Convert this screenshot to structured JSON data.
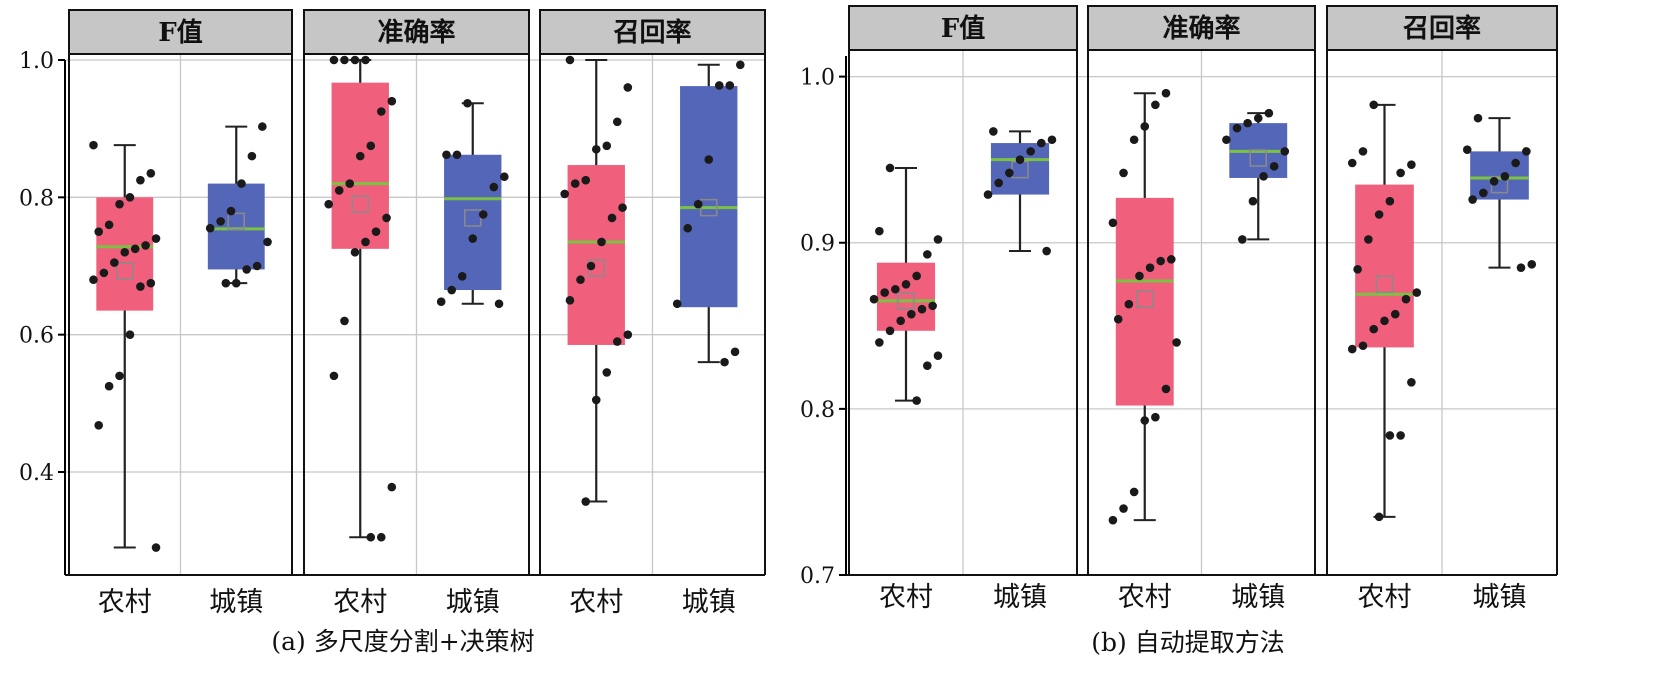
{
  "colors": {
    "rural_box": "#f0607d",
    "urban_box": "#5466b8",
    "median": "#7cc242",
    "strip_bg": "#c6c6c6",
    "grid": "#c8c8c8",
    "point": "#1a1a1a"
  },
  "chart_data": [
    {
      "type": "box",
      "caption": "(a) 多尺度分割+决策树",
      "ylim": [
        0.25,
        1.0
      ],
      "yticks": [
        0.4,
        0.6,
        0.8,
        1.0
      ],
      "ytick_labels": [
        "0.4",
        "0.6",
        "0.8",
        "1.0"
      ],
      "grid": true,
      "panels": [
        {
          "title": "F值",
          "categories": [
            "农村",
            "城镇"
          ],
          "boxes": [
            {
              "category": "农村",
              "whisker_low": 0.29,
              "q1": 0.635,
              "median": 0.728,
              "mean": 0.693,
              "q3": 0.8,
              "whisker_high": 0.876,
              "points": [
                0.876,
                0.835,
                0.825,
                0.8,
                0.79,
                0.76,
                0.75,
                0.74,
                0.73,
                0.725,
                0.72,
                0.705,
                0.69,
                0.68,
                0.675,
                0.67,
                0.6,
                0.54,
                0.525,
                0.468,
                0.29
              ]
            },
            {
              "category": "城镇",
              "whisker_low": 0.675,
              "q1": 0.695,
              "median": 0.754,
              "mean": 0.765,
              "q3": 0.82,
              "whisker_high": 0.903,
              "points": [
                0.903,
                0.86,
                0.82,
                0.78,
                0.765,
                0.755,
                0.735,
                0.7,
                0.695,
                0.675,
                0.675
              ]
            }
          ]
        },
        {
          "title": "准确率",
          "categories": [
            "农村",
            "城镇"
          ],
          "boxes": [
            {
              "category": "农村",
              "whisker_low": 0.305,
              "q1": 0.725,
              "median": 0.82,
              "mean": 0.79,
              "q3": 0.967,
              "whisker_high": 1.0,
              "points": [
                1.0,
                1.0,
                1.0,
                1.0,
                0.94,
                0.925,
                0.875,
                0.86,
                0.82,
                0.81,
                0.79,
                0.77,
                0.75,
                0.735,
                0.72,
                0.62,
                0.54,
                0.378,
                0.305,
                0.305
              ]
            },
            {
              "category": "城镇",
              "whisker_low": 0.645,
              "q1": 0.665,
              "median": 0.798,
              "mean": 0.77,
              "q3": 0.862,
              "whisker_high": 0.937,
              "points": [
                0.937,
                0.862,
                0.862,
                0.83,
                0.815,
                0.775,
                0.74,
                0.685,
                0.665,
                0.648,
                0.645
              ]
            }
          ]
        },
        {
          "title": "召回率",
          "categories": [
            "农村",
            "城镇"
          ],
          "boxes": [
            {
              "category": "农村",
              "whisker_low": 0.357,
              "q1": 0.585,
              "median": 0.735,
              "mean": 0.697,
              "q3": 0.847,
              "whisker_high": 1.0,
              "points": [
                1.0,
                0.96,
                0.91,
                0.875,
                0.87,
                0.825,
                0.82,
                0.805,
                0.785,
                0.77,
                0.735,
                0.7,
                0.68,
                0.65,
                0.6,
                0.59,
                0.545,
                0.505,
                0.357
              ]
            },
            {
              "category": "城镇",
              "whisker_low": 0.56,
              "q1": 0.64,
              "median": 0.785,
              "mean": 0.785,
              "q3": 0.962,
              "whisker_high": 0.993,
              "points": [
                0.993,
                0.963,
                0.963,
                0.855,
                0.79,
                0.755,
                0.645,
                0.575,
                0.56
              ]
            }
          ]
        }
      ]
    },
    {
      "type": "box",
      "caption": "(b) 自动提取方法",
      "ylim": [
        0.7,
        1.01
      ],
      "yticks": [
        0.7,
        0.8,
        0.9,
        1.0
      ],
      "ytick_labels": [
        "0.7",
        "0.8",
        "0.9",
        "1.0"
      ],
      "grid": true,
      "panels": [
        {
          "title": "F值",
          "categories": [
            "农村",
            "城镇"
          ],
          "boxes": [
            {
              "category": "农村",
              "whisker_low": 0.805,
              "q1": 0.847,
              "median": 0.865,
              "mean": 0.865,
              "q3": 0.888,
              "whisker_high": 0.945,
              "points": [
                0.945,
                0.907,
                0.902,
                0.893,
                0.88,
                0.875,
                0.872,
                0.87,
                0.866,
                0.862,
                0.86,
                0.857,
                0.853,
                0.847,
                0.84,
                0.832,
                0.826,
                0.805
              ]
            },
            {
              "category": "城镇",
              "whisker_low": 0.895,
              "q1": 0.929,
              "median": 0.95,
              "mean": 0.944,
              "q3": 0.96,
              "whisker_high": 0.967,
              "points": [
                0.967,
                0.962,
                0.96,
                0.955,
                0.95,
                0.942,
                0.936,
                0.929,
                0.895
              ]
            }
          ]
        },
        {
          "title": "准确率",
          "categories": [
            "农村",
            "城镇"
          ],
          "boxes": [
            {
              "category": "农村",
              "whisker_low": 0.733,
              "q1": 0.802,
              "median": 0.877,
              "mean": 0.866,
              "q3": 0.927,
              "whisker_high": 0.99,
              "points": [
                0.99,
                0.983,
                0.97,
                0.962,
                0.942,
                0.912,
                0.89,
                0.889,
                0.885,
                0.88,
                0.863,
                0.854,
                0.84,
                0.812,
                0.795,
                0.793,
                0.75,
                0.74,
                0.733
              ]
            },
            {
              "category": "城镇",
              "whisker_low": 0.902,
              "q1": 0.939,
              "median": 0.955,
              "mean": 0.951,
              "q3": 0.972,
              "whisker_high": 0.978,
              "points": [
                0.978,
                0.975,
                0.972,
                0.969,
                0.962,
                0.955,
                0.946,
                0.94,
                0.925,
                0.902
              ]
            }
          ]
        },
        {
          "title": "召回率",
          "categories": [
            "农村",
            "城镇"
          ],
          "boxes": [
            {
              "category": "农村",
              "whisker_low": 0.735,
              "q1": 0.837,
              "median": 0.869,
              "mean": 0.875,
              "q3": 0.935,
              "whisker_high": 0.983,
              "points": [
                0.983,
                0.955,
                0.948,
                0.947,
                0.942,
                0.925,
                0.917,
                0.902,
                0.884,
                0.87,
                0.866,
                0.857,
                0.853,
                0.848,
                0.838,
                0.836,
                0.816,
                0.784,
                0.784,
                0.735
              ]
            },
            {
              "category": "城镇",
              "whisker_low": 0.885,
              "q1": 0.926,
              "median": 0.939,
              "mean": 0.935,
              "q3": 0.955,
              "whisker_high": 0.975,
              "points": [
                0.975,
                0.956,
                0.955,
                0.948,
                0.94,
                0.937,
                0.93,
                0.926,
                0.887,
                0.885
              ]
            }
          ]
        }
      ]
    }
  ]
}
